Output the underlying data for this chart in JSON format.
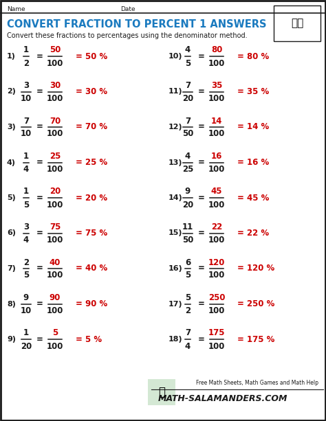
{
  "title": "CONVERT FRACTION TO PERCENT 1 ANSWERS",
  "subtitle": "Convert these fractions to percentages using the denominator method.",
  "name_label": "Name",
  "date_label": "Date",
  "title_color": "#1a7abf",
  "red_color": "#cc0000",
  "black_color": "#1a1a1a",
  "bg_color": "#ffffff",
  "problems": [
    {
      "num": "1)",
      "n1": "1",
      "d1": "2",
      "n2": "50",
      "d2": "100",
      "pct": "= 50 %",
      "col": 0
    },
    {
      "num": "2)",
      "n1": "3",
      "d1": "10",
      "n2": "30",
      "d2": "100",
      "pct": "= 30 %",
      "col": 0
    },
    {
      "num": "3)",
      "n1": "7",
      "d1": "10",
      "n2": "70",
      "d2": "100",
      "pct": "= 70 %",
      "col": 0
    },
    {
      "num": "4)",
      "n1": "1",
      "d1": "4",
      "n2": "25",
      "d2": "100",
      "pct": "= 25 %",
      "col": 0
    },
    {
      "num": "5)",
      "n1": "1",
      "d1": "5",
      "n2": "20",
      "d2": "100",
      "pct": "= 20 %",
      "col": 0
    },
    {
      "num": "6)",
      "n1": "3",
      "d1": "4",
      "n2": "75",
      "d2": "100",
      "pct": "= 75 %",
      "col": 0
    },
    {
      "num": "7)",
      "n1": "2",
      "d1": "5",
      "n2": "40",
      "d2": "100",
      "pct": "= 40 %",
      "col": 0
    },
    {
      "num": "8)",
      "n1": "9",
      "d1": "10",
      "n2": "90",
      "d2": "100",
      "pct": "= 90 %",
      "col": 0
    },
    {
      "num": "9)",
      "n1": "1",
      "d1": "20",
      "n2": "5",
      "d2": "100",
      "pct": "= 5 %",
      "col": 0
    },
    {
      "num": "10)",
      "n1": "4",
      "d1": "5",
      "n2": "80",
      "d2": "100",
      "pct": "= 80 %",
      "col": 1
    },
    {
      "num": "11)",
      "n1": "7",
      "d1": "20",
      "n2": "35",
      "d2": "100",
      "pct": "= 35 %",
      "col": 1
    },
    {
      "num": "12)",
      "n1": "7",
      "d1": "50",
      "n2": "14",
      "d2": "100",
      "pct": "= 14 %",
      "col": 1
    },
    {
      "num": "13)",
      "n1": "4",
      "d1": "25",
      "n2": "16",
      "d2": "100",
      "pct": "= 16 %",
      "col": 1
    },
    {
      "num": "14)",
      "n1": "9",
      "d1": "20",
      "n2": "45",
      "d2": "100",
      "pct": "= 45 %",
      "col": 1
    },
    {
      "num": "15)",
      "n1": "11",
      "d1": "50",
      "n2": "22",
      "d2": "100",
      "pct": "= 22 %",
      "col": 1
    },
    {
      "num": "16)",
      "n1": "6",
      "d1": "5",
      "n2": "120",
      "d2": "100",
      "pct": "= 120 %",
      "col": 1
    },
    {
      "num": "17)",
      "n1": "5",
      "d1": "2",
      "n2": "250",
      "d2": "100",
      "pct": "= 250 %",
      "col": 1
    },
    {
      "num": "18)",
      "n1": "7",
      "d1": "4",
      "n2": "175",
      "d2": "100",
      "pct": "= 175 %",
      "col": 1
    }
  ],
  "footer_text": "Free Math Sheets, Math Games and Math Help",
  "footer_url": "ATH-SALAMANDERS.COM",
  "border_color": "#000000",
  "figsize": [
    4.74,
    6.13
  ],
  "dpi": 100
}
